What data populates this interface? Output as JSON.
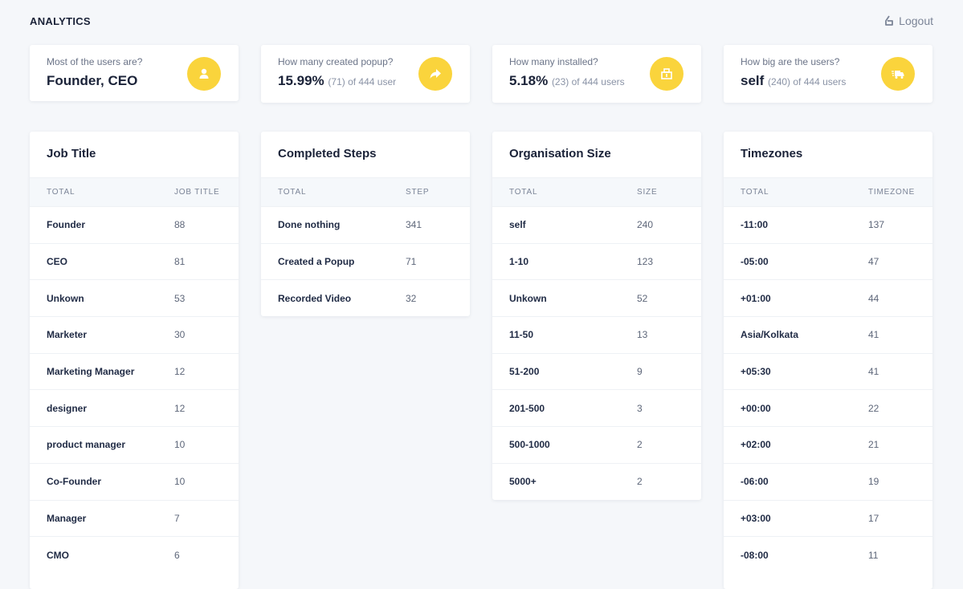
{
  "header": {
    "brand": "ANALYTICS",
    "logout_label": "Logout"
  },
  "stats": [
    {
      "question": "Most of the users are?",
      "main": "Founder, CEO",
      "extra": "",
      "icon": "user-icon"
    },
    {
      "question": "How many created popup?",
      "main": "15.99%",
      "extra": "(71) of 444 user",
      "icon": "share-arrow-icon"
    },
    {
      "question": "How many installed?",
      "main": "5.18%",
      "extra": "(23) of 444 users",
      "icon": "install-icon"
    },
    {
      "question": "How big are the users?",
      "main": "self",
      "extra": "(240) of 444 users",
      "icon": "truck-icon"
    }
  ],
  "colors": {
    "accent": "#fad43c",
    "background": "#f5f7fa"
  },
  "tables": [
    {
      "title": "Job Title",
      "col1": "TOTAL",
      "col2": "JOB TITLE",
      "rows": [
        [
          "Founder",
          "88"
        ],
        [
          "CEO",
          "81"
        ],
        [
          "Unkown",
          "53"
        ],
        [
          "Marketer",
          "30"
        ],
        [
          "Marketing Manager",
          "12"
        ],
        [
          "designer",
          "12"
        ],
        [
          "product manager",
          "10"
        ],
        [
          "Co-Founder",
          "10"
        ],
        [
          "Manager",
          "7"
        ],
        [
          "CMO",
          "6"
        ]
      ]
    },
    {
      "title": "Completed Steps",
      "col1": "TOTAL",
      "col2": "STEP",
      "rows": [
        [
          "Done nothing",
          "341"
        ],
        [
          "Created a Popup",
          "71"
        ],
        [
          "Recorded Video",
          "32"
        ]
      ]
    },
    {
      "title": "Organisation Size",
      "col1": "TOTAL",
      "col2": "SIZE",
      "rows": [
        [
          "self",
          "240"
        ],
        [
          "1-10",
          "123"
        ],
        [
          "Unkown",
          "52"
        ],
        [
          "11-50",
          "13"
        ],
        [
          "51-200",
          "9"
        ],
        [
          "201-500",
          "3"
        ],
        [
          "500-1000",
          "2"
        ],
        [
          "5000+",
          "2"
        ]
      ]
    },
    {
      "title": "Timezones",
      "col1": "TOTAL",
      "col2": "TIMEZONE",
      "rows": [
        [
          "-11:00",
          "137"
        ],
        [
          "-05:00",
          "47"
        ],
        [
          "+01:00",
          "44"
        ],
        [
          "Asia/Kolkata",
          "41"
        ],
        [
          "+05:30",
          "41"
        ],
        [
          "+00:00",
          "22"
        ],
        [
          "+02:00",
          "21"
        ],
        [
          "-06:00",
          "19"
        ],
        [
          "+03:00",
          "17"
        ],
        [
          "-08:00",
          "11"
        ]
      ]
    }
  ]
}
